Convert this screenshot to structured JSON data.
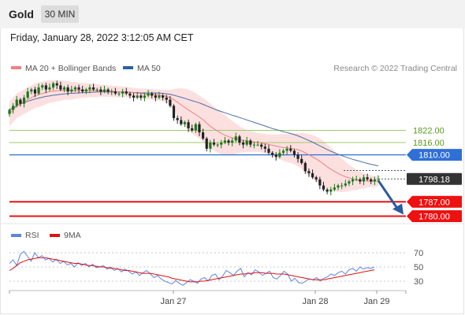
{
  "header": {
    "instrument": "Gold",
    "timeframe": "30 MIN"
  },
  "date_line": "Friday, January 28, 2022 3:12:05 AM CET",
  "source": "Research © 2022 Trading Central",
  "colors": {
    "price_up": "#1a7a1a",
    "price_down": "#222222",
    "ma20": "#f08080",
    "bollinger": "#fbd5d5",
    "ma50": "#4a6fa5",
    "resistance_green": "#9ccc65",
    "level_blue": "#2f6fd6",
    "support_red": "#ee1111",
    "arrow": "#2a5aa0",
    "rsi": "#5b86e5",
    "rsi_ma": "#dd1111"
  },
  "chart_data": [
    {
      "type": "candlestick",
      "legend": [
        {
          "name": "MA 20 + Bollinger Bands",
          "color": "#f08080"
        },
        {
          "name": "MA 50",
          "color": "#2f5f9f"
        }
      ],
      "x_ticks": [
        "Jan 27",
        "Jan 28",
        "Jan 29"
      ],
      "ylim": [
        1775,
        1849
      ],
      "price_levels": [
        {
          "value": 1822.0,
          "label": "1822.00",
          "kind": "resistance",
          "color": "#9ccc65"
        },
        {
          "value": 1816.0,
          "label": "1816.00",
          "kind": "resistance",
          "color": "#9ccc65"
        },
        {
          "value": 1810.0,
          "label": "1810.00",
          "kind": "pivot",
          "color": "#2f6fd6"
        },
        {
          "value": 1798.18,
          "label": "1798.18",
          "kind": "last_price",
          "color": "#333333"
        },
        {
          "value": 1787.0,
          "label": "1787.00",
          "kind": "support",
          "color": "#ee1111"
        },
        {
          "value": 1780.0,
          "label": "1780.00",
          "kind": "support",
          "color": "#ee1111"
        }
      ],
      "closes": [
        1832,
        1834,
        1837,
        1835,
        1838,
        1841,
        1842,
        1840,
        1843,
        1844,
        1842,
        1843,
        1845,
        1844,
        1842,
        1843,
        1841,
        1842,
        1843,
        1842,
        1841,
        1842,
        1843,
        1842,
        1842,
        1841,
        1842,
        1841,
        1841,
        1840,
        1840,
        1841,
        1840,
        1839,
        1838,
        1839,
        1838,
        1839,
        1840,
        1839,
        1838,
        1839,
        1838,
        1837,
        1834,
        1828,
        1827,
        1825,
        1826,
        1823,
        1822,
        1825,
        1821,
        1818,
        1813,
        1816,
        1815,
        1815,
        1816,
        1817,
        1816,
        1817,
        1819,
        1816,
        1815,
        1817,
        1815,
        1815,
        1815,
        1814,
        1813,
        1811,
        1810,
        1809,
        1811,
        1812,
        1813,
        1812,
        1810,
        1808,
        1806,
        1802,
        1801,
        1799,
        1798,
        1795,
        1793,
        1792,
        1793,
        1794,
        1795,
        1795,
        1796,
        1797,
        1798,
        1798,
        1797,
        1799,
        1798,
        1797,
        1798,
        1798.18
      ],
      "ma20": [
        1830,
        1832,
        1834,
        1835,
        1836,
        1837,
        1838,
        1839,
        1839.5,
        1840,
        1840.5,
        1841,
        1841.2,
        1841.4,
        1841.5,
        1841.6,
        1841.5,
        1841.4,
        1841.5,
        1841.6,
        1841.6,
        1841.5,
        1841.6,
        1841.5,
        1841.4,
        1841.4,
        1841.3,
        1841.2,
        1841.1,
        1841,
        1840.9,
        1840.8,
        1840.7,
        1840.6,
        1840.4,
        1840.2,
        1840,
        1839.8,
        1839.7,
        1839.6,
        1839.4,
        1839.2,
        1839,
        1838.6,
        1838,
        1837,
        1835.8,
        1834.5,
        1833.2,
        1832,
        1830.8,
        1829.7,
        1828.5,
        1827.2,
        1825.5,
        1824,
        1822.8,
        1821.6,
        1820.5,
        1819.6,
        1818.9,
        1818.3,
        1817.9,
        1817.5,
        1817.1,
        1816.8,
        1816.5,
        1816.3,
        1816.1,
        1815.8,
        1815.5,
        1815.1,
        1814.7,
        1814.3,
        1813.9,
        1813.6,
        1813.4,
        1813.2,
        1812.9,
        1812.5,
        1811.9,
        1811,
        1810,
        1809,
        1808,
        1806.8,
        1805.5,
        1804.2,
        1803,
        1801.9,
        1800.9,
        1800,
        1799.3,
        1798.7,
        1798.2,
        1797.8,
        1797.5,
        1797.3,
        1797.2,
        1797.1,
        1797.1,
        1797.1
      ],
      "bollinger_upper": [
        1836,
        1838,
        1840,
        1841,
        1842,
        1843,
        1844,
        1845,
        1845.5,
        1846,
        1846.3,
        1846.5,
        1846.6,
        1846.6,
        1846.5,
        1846.3,
        1846,
        1845.8,
        1845.6,
        1845.5,
        1845.3,
        1845.1,
        1845,
        1844.8,
        1844.6,
        1844.4,
        1844.2,
        1844,
        1843.9,
        1843.8,
        1843.6,
        1843.4,
        1843.2,
        1843,
        1842.8,
        1842.6,
        1842.5,
        1842.4,
        1842.3,
        1842.2,
        1842,
        1841.9,
        1841.8,
        1841.8,
        1841.9,
        1842.2,
        1842.5,
        1842.6,
        1842.4,
        1842,
        1841.2,
        1840.2,
        1839,
        1837.8,
        1836.5,
        1835,
        1833.6,
        1832.2,
        1830.8,
        1829.4,
        1828,
        1826.6,
        1825.3,
        1824,
        1823,
        1822.2,
        1821.6,
        1821.1,
        1820.7,
        1820.4,
        1820.2,
        1820.1,
        1820,
        1820,
        1820.1,
        1820.2,
        1820.3,
        1820.4,
        1820.5,
        1820.6,
        1820.6,
        1820.5,
        1820.2,
        1819.7,
        1819,
        1818,
        1816.7,
        1815.2,
        1813.5,
        1811.8,
        1810,
        1808.3,
        1806.7,
        1805.2,
        1803.9,
        1802.8,
        1801.8,
        1801,
        1800.4,
        1799.9,
        1799.6,
        1799.4
      ],
      "bollinger_lower": [
        1824,
        1826,
        1828,
        1829,
        1830,
        1831,
        1832,
        1833,
        1833.5,
        1834,
        1834.7,
        1835.5,
        1835.8,
        1836.2,
        1836.5,
        1836.9,
        1837,
        1837,
        1837.4,
        1837.7,
        1837.9,
        1837.9,
        1838.2,
        1838.2,
        1838.2,
        1838.4,
        1838.4,
        1838.4,
        1838.3,
        1838.2,
        1838.2,
        1838.2,
        1838.2,
        1838.2,
        1838,
        1837.8,
        1837.5,
        1837.2,
        1837.1,
        1837,
        1836.8,
        1836.5,
        1836.2,
        1835.4,
        1834.1,
        1831.8,
        1829.1,
        1826.4,
        1824,
        1822,
        1820.4,
        1819.2,
        1818,
        1816.6,
        1814.5,
        1813,
        1812,
        1811,
        1810.2,
        1809.8,
        1809.8,
        1810,
        1810.5,
        1811,
        1811.2,
        1811.4,
        1811.4,
        1811.5,
        1811.5,
        1811.2,
        1810.8,
        1810.1,
        1809.4,
        1808.6,
        1807.8,
        1807,
        1806.5,
        1806,
        1805.4,
        1804.4,
        1803.2,
        1801.5,
        1799.8,
        1798.3,
        1797,
        1795.6,
        1794.3,
        1793.2,
        1792.5,
        1792,
        1791.8,
        1791.7,
        1791.9,
        1792.2,
        1792.5,
        1792.8,
        1793.2,
        1793.6,
        1794,
        1794.2,
        1794.3,
        1794.6
      ],
      "ma50": [
        1832,
        1833,
        1834,
        1835,
        1835.6,
        1836.2,
        1836.8,
        1837.3,
        1837.8,
        1838.2,
        1838.6,
        1838.9,
        1839.2,
        1839.4,
        1839.6,
        1839.8,
        1840,
        1840.1,
        1840.2,
        1840.3,
        1840.4,
        1840.5,
        1840.6,
        1840.7,
        1840.8,
        1840.8,
        1840.8,
        1840.8,
        1840.8,
        1840.8,
        1840.8,
        1840.8,
        1840.7,
        1840.6,
        1840.5,
        1840.4,
        1840.3,
        1840.3,
        1840.3,
        1840.3,
        1840.3,
        1840.2,
        1840.1,
        1839.9,
        1839.6,
        1839.2,
        1838.7,
        1838.2,
        1837.7,
        1837.1,
        1836.5,
        1836,
        1835.4,
        1834.7,
        1833.9,
        1833.2,
        1832.5,
        1831.8,
        1831.2,
        1830.6,
        1830,
        1829.4,
        1828.9,
        1828.3,
        1827.7,
        1827.1,
        1826.5,
        1825.9,
        1825.3,
        1824.7,
        1824.1,
        1823.5,
        1822.9,
        1822.4,
        1821.9,
        1821.4,
        1820.9,
        1820.4,
        1819.9,
        1819.3,
        1818.6,
        1817.8,
        1817,
        1816.2,
        1815.3,
        1814.4,
        1813.5,
        1812.6,
        1811.8,
        1811,
        1810.3,
        1809.6,
        1809,
        1808.4,
        1807.8,
        1807.3,
        1806.8,
        1806.3,
        1805.8,
        1805.4,
        1805,
        1804.6
      ],
      "forecast_arrow": {
        "from": 1798.18,
        "to": 1780.0
      }
    },
    {
      "type": "line",
      "legend": [
        {
          "name": "RSI",
          "color": "#5b86e5"
        },
        {
          "name": "9MA",
          "color": "#dd1111"
        }
      ],
      "y_ticks": [
        70,
        50,
        30
      ],
      "ylim": [
        10,
        90
      ],
      "series": [
        {
          "name": "RSI",
          "values": [
            55,
            60,
            52,
            68,
            72,
            65,
            58,
            70,
            63,
            66,
            60,
            62,
            57,
            61,
            55,
            58,
            53,
            55,
            50,
            56,
            52,
            55,
            50,
            54,
            49,
            50,
            52,
            47,
            50,
            45,
            48,
            43,
            47,
            44,
            40,
            43,
            38,
            42,
            45,
            40,
            35,
            38,
            33,
            30,
            28,
            26,
            31,
            27,
            24,
            28,
            32,
            30,
            27,
            33,
            35,
            30,
            38,
            40,
            32,
            37,
            45,
            42,
            38,
            44,
            48,
            36,
            42,
            39,
            46,
            43,
            38,
            41,
            44,
            35,
            33,
            38,
            44,
            40,
            30,
            34,
            28,
            27,
            30,
            33,
            32,
            35,
            30,
            34,
            36,
            40,
            38,
            42,
            44,
            40,
            46,
            48,
            44,
            50,
            47,
            49,
            48,
            50
          ]
        },
        {
          "name": "9MA",
          "values": [
            45,
            48,
            52,
            56,
            58,
            60,
            61,
            62,
            63,
            63,
            63,
            62,
            61,
            60,
            59,
            58,
            57,
            56,
            55,
            55,
            54,
            53,
            52,
            52,
            51,
            50,
            50,
            49,
            48,
            48,
            47,
            46,
            45,
            45,
            44,
            43,
            42,
            41,
            41,
            41,
            40,
            39,
            38,
            37,
            36,
            34,
            33,
            32,
            31,
            30,
            29,
            29,
            29,
            30,
            30,
            31,
            32,
            33,
            34,
            35,
            36,
            37,
            38,
            39,
            40,
            40,
            41,
            41,
            42,
            42,
            42,
            41,
            41,
            41,
            40,
            40,
            40,
            39,
            38,
            37,
            36,
            35,
            34,
            33,
            32,
            32,
            32,
            32,
            33,
            34,
            35,
            36,
            37,
            38,
            39,
            40,
            41,
            42,
            43,
            44,
            45,
            46
          ]
        }
      ]
    }
  ]
}
